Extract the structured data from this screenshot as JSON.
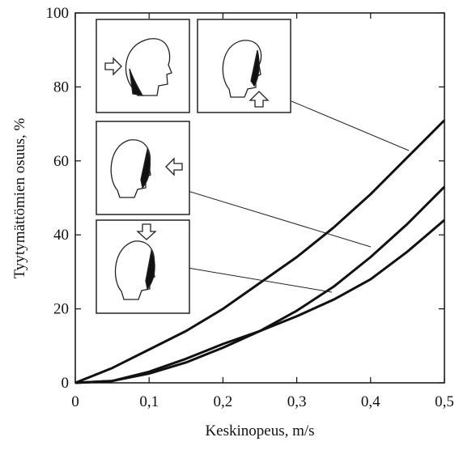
{
  "chart_data": {
    "type": "line",
    "x_label": "Keskinopeus, m/s",
    "y_label": "Tyytymättömien osuus, %",
    "x": [
      0,
      0.05,
      0.1,
      0.15,
      0.2,
      0.25,
      0.3,
      0.35,
      0.4,
      0.45,
      0.5
    ],
    "series": [
      {
        "color": "#111111",
        "values": [
          0,
          4,
          9,
          14,
          20,
          27,
          34,
          42,
          51,
          61,
          71
        ]
      },
      {
        "color": "#111111",
        "values": [
          0,
          0.5,
          2.5,
          5.5,
          9.5,
          14,
          19.5,
          26,
          34,
          43,
          53
        ]
      },
      {
        "color": "#111111",
        "values": [
          0,
          0.5,
          3,
          6.5,
          10.5,
          14,
          18,
          22.5,
          28,
          35.5,
          44
        ]
      }
    ],
    "xlim": [
      0,
      0.5
    ],
    "xticks": [
      0,
      {
        "value": 0.1,
        "label": "0,1"
      },
      {
        "value": 0.2,
        "label": "0,2"
      },
      {
        "value": 0.3,
        "label": "0,3"
      },
      {
        "value": 0.4,
        "label": "0,4"
      },
      {
        "value": 0.5,
        "label": "0,5"
      }
    ],
    "ylim": [
      0,
      100
    ],
    "yticks": [
      0,
      20,
      40,
      60,
      80,
      100
    ]
  }
}
